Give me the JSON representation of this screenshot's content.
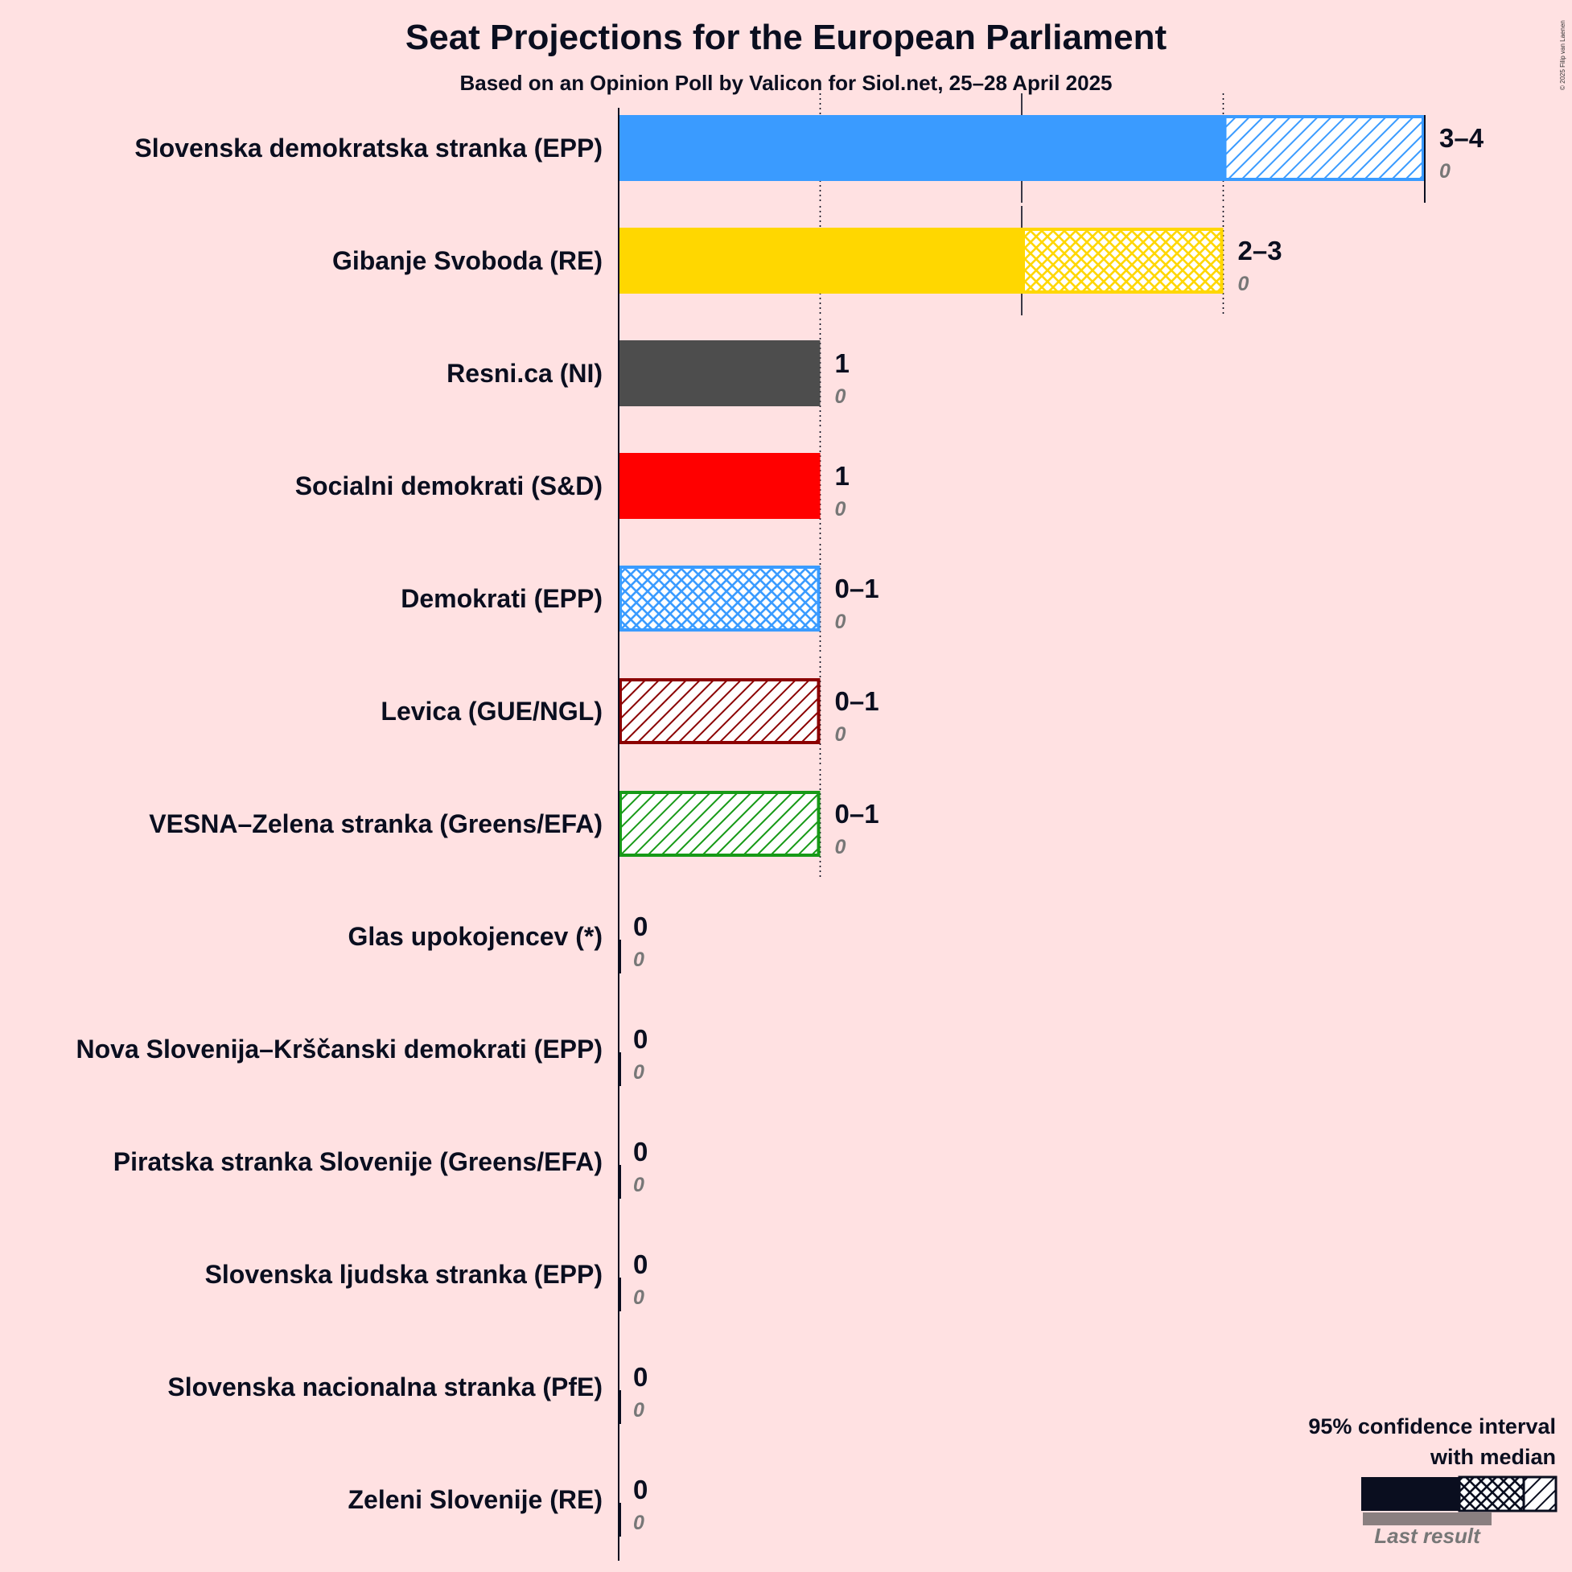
{
  "title": "Seat Projections for the European Parliament",
  "subtitle": "Based on an Opinion Poll by Valicon for Siol.net, 25–28 April 2025",
  "copyright": "© 2025 Filip van Laenen",
  "legend": {
    "title_line1": "95% confidence interval",
    "title_line2": "with median",
    "last_result": "Last result"
  },
  "chart_data": {
    "type": "bar",
    "orientation": "horizontal",
    "title": "Seat Projections for the European Parliament",
    "subtitle": "Based on an Opinion Poll by Valicon for Siol.net, 25–28 April 2025",
    "xlim": [
      0,
      4
    ],
    "gridlines": [
      1,
      2,
      3
    ],
    "parties": [
      {
        "name": "Slovenska demokratska stranka (EPP)",
        "low": 3,
        "median": 3,
        "high": 4,
        "label": "3–4",
        "last": 0,
        "last_label": "0",
        "color": "#3a9bff",
        "edge": "#3a9bff"
      },
      {
        "name": "Gibanje Svoboda (RE)",
        "low": 2,
        "median": 3,
        "high": 3,
        "label": "2–3",
        "last": 0,
        "last_label": "0",
        "color": "#ffd700",
        "edge": "#ffd700"
      },
      {
        "name": "Resni.ca (NI)",
        "low": 1,
        "median": 1,
        "high": 1,
        "label": "1",
        "last": 0,
        "last_label": "0",
        "color": "#4d4d4d",
        "edge": "#4d4d4d"
      },
      {
        "name": "Socialni demokrati (S&D)",
        "low": 1,
        "median": 1,
        "high": 1,
        "label": "1",
        "last": 0,
        "last_label": "0",
        "color": "#ff0000",
        "edge": "#ff0000"
      },
      {
        "name": "Demokrati (EPP)",
        "low": 0,
        "median": 1,
        "high": 1,
        "label": "0–1",
        "last": 0,
        "last_label": "0",
        "color": "#3a9bff",
        "edge": "#3a9bff"
      },
      {
        "name": "Levica (GUE/NGL)",
        "low": 0,
        "median": 0,
        "high": 1,
        "label": "0–1",
        "last": 0,
        "last_label": "0",
        "color": "#8b0000",
        "edge": "#8b0000"
      },
      {
        "name": "VESNA–Zelena stranka (Greens/EFA)",
        "low": 0,
        "median": 0,
        "high": 1,
        "label": "0–1",
        "last": 0,
        "last_label": "0",
        "color": "#179a17",
        "edge": "#179a17"
      },
      {
        "name": "Glas upokojencev (*)",
        "low": 0,
        "median": 0,
        "high": 0,
        "label": "0",
        "last": 0,
        "last_label": "0",
        "color": "#888888",
        "edge": "#888888"
      },
      {
        "name": "Nova Slovenija–Krščanski demokrati (EPP)",
        "low": 0,
        "median": 0,
        "high": 0,
        "label": "0",
        "last": 0,
        "last_label": "0",
        "color": "#3a9bff",
        "edge": "#3a9bff"
      },
      {
        "name": "Piratska stranka Slovenije (Greens/EFA)",
        "low": 0,
        "median": 0,
        "high": 0,
        "label": "0",
        "last": 0,
        "last_label": "0",
        "color": "#179a17",
        "edge": "#179a17"
      },
      {
        "name": "Slovenska ljudska stranka (EPP)",
        "low": 0,
        "median": 0,
        "high": 0,
        "label": "0",
        "last": 0,
        "last_label": "0",
        "color": "#3a9bff",
        "edge": "#3a9bff"
      },
      {
        "name": "Slovenska nacionalna stranka (PfE)",
        "low": 0,
        "median": 0,
        "high": 0,
        "label": "0",
        "last": 0,
        "last_label": "0",
        "color": "#0a0e1f",
        "edge": "#0a0e1f"
      },
      {
        "name": "Zeleni Slovenije (RE)",
        "low": 0,
        "median": 0,
        "high": 0,
        "label": "0",
        "last": 0,
        "last_label": "0",
        "color": "#ffd700",
        "edge": "#ffd700"
      }
    ]
  }
}
